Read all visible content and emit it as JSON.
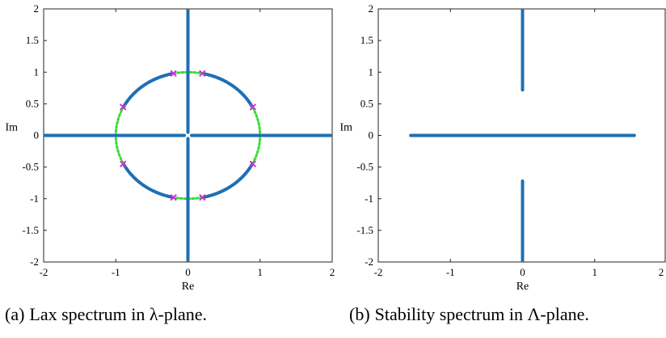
{
  "chart_data": [
    {
      "type": "scatter",
      "xlabel": "Re",
      "ylabel": "Im",
      "xlim": [
        -2,
        2
      ],
      "ylim": [
        -2,
        2
      ],
      "xticks": [
        "-2",
        "-1",
        "0",
        "1",
        "2"
      ],
      "yticks": [
        "2",
        "1.5",
        "1",
        "0.5",
        "0",
        "-0.5",
        "-1",
        "-1.5",
        "-2"
      ],
      "grid": false,
      "series": [
        {
          "kind": "segment",
          "color": "#1f6fb2",
          "from": [
            -2,
            0
          ],
          "to": [
            -0.05,
            0
          ]
        },
        {
          "kind": "segment",
          "color": "#1f6fb2",
          "from": [
            0.05,
            0
          ],
          "to": [
            2,
            0
          ]
        },
        {
          "kind": "segment",
          "color": "#1f6fb2",
          "from": [
            0,
            -2
          ],
          "to": [
            0,
            -0.05
          ]
        },
        {
          "kind": "segment",
          "color": "#1f6fb2",
          "from": [
            0,
            0.05
          ],
          "to": [
            0,
            2
          ]
        },
        {
          "kind": "arc",
          "color": "#1f6fb2",
          "radius": 1,
          "from_deg": 26.5,
          "to_deg": 77.5
        },
        {
          "kind": "arc",
          "color": "#1f6fb2",
          "radius": 1,
          "from_deg": 102.5,
          "to_deg": 153.5
        },
        {
          "kind": "arc",
          "color": "#1f6fb2",
          "radius": 1,
          "from_deg": 206.5,
          "to_deg": 257.5
        },
        {
          "kind": "arc",
          "color": "#1f6fb2",
          "radius": 1,
          "from_deg": 282.5,
          "to_deg": 333.5
        },
        {
          "kind": "dotted-arc",
          "color": "#33dd33",
          "radius": 1,
          "from_deg": 77.5,
          "to_deg": 102.5
        },
        {
          "kind": "dotted-arc",
          "color": "#33dd33",
          "radius": 1,
          "from_deg": 153.5,
          "to_deg": 206.5
        },
        {
          "kind": "dotted-arc",
          "color": "#33dd33",
          "radius": 1,
          "from_deg": 257.5,
          "to_deg": 282.5
        },
        {
          "kind": "dotted-arc",
          "color": "#33dd33",
          "radius": 1,
          "from_deg": 333.5,
          "to_deg": 386.5
        }
      ],
      "markers": {
        "color": "#cc33cc",
        "points": [
          [
            0.2,
            0.98
          ],
          [
            -0.2,
            0.98
          ],
          [
            0.9,
            0.45
          ],
          [
            -0.9,
            0.45
          ],
          [
            0.9,
            -0.45
          ],
          [
            -0.9,
            -0.45
          ],
          [
            0.2,
            -0.98
          ],
          [
            -0.2,
            -0.98
          ]
        ]
      },
      "caption": {
        "label": "(a)",
        "text": "Lax spectrum in λ-plane."
      }
    },
    {
      "type": "scatter",
      "xlabel": "Re",
      "ylabel": "Im",
      "xlim": [
        -2,
        2
      ],
      "ylim": [
        -2,
        2
      ],
      "xticks": [
        "-2",
        "-1",
        "0",
        "1",
        "2"
      ],
      "yticks": [
        "2",
        "1.5",
        "1",
        "0.5",
        "0",
        "-0.5",
        "-1",
        "-1.5",
        "-2"
      ],
      "grid": false,
      "series": [
        {
          "kind": "segment",
          "color": "#1f6fb2",
          "from": [
            -1.55,
            0
          ],
          "to": [
            1.55,
            0
          ]
        },
        {
          "kind": "segment",
          "color": "#1f6fb2",
          "from": [
            0,
            0.72
          ],
          "to": [
            0,
            2
          ]
        },
        {
          "kind": "segment",
          "color": "#1f6fb2",
          "from": [
            0,
            -2
          ],
          "to": [
            0,
            -0.72
          ]
        }
      ],
      "caption": {
        "label": "(b)",
        "text": "Stability spectrum in Λ-plane."
      }
    }
  ]
}
